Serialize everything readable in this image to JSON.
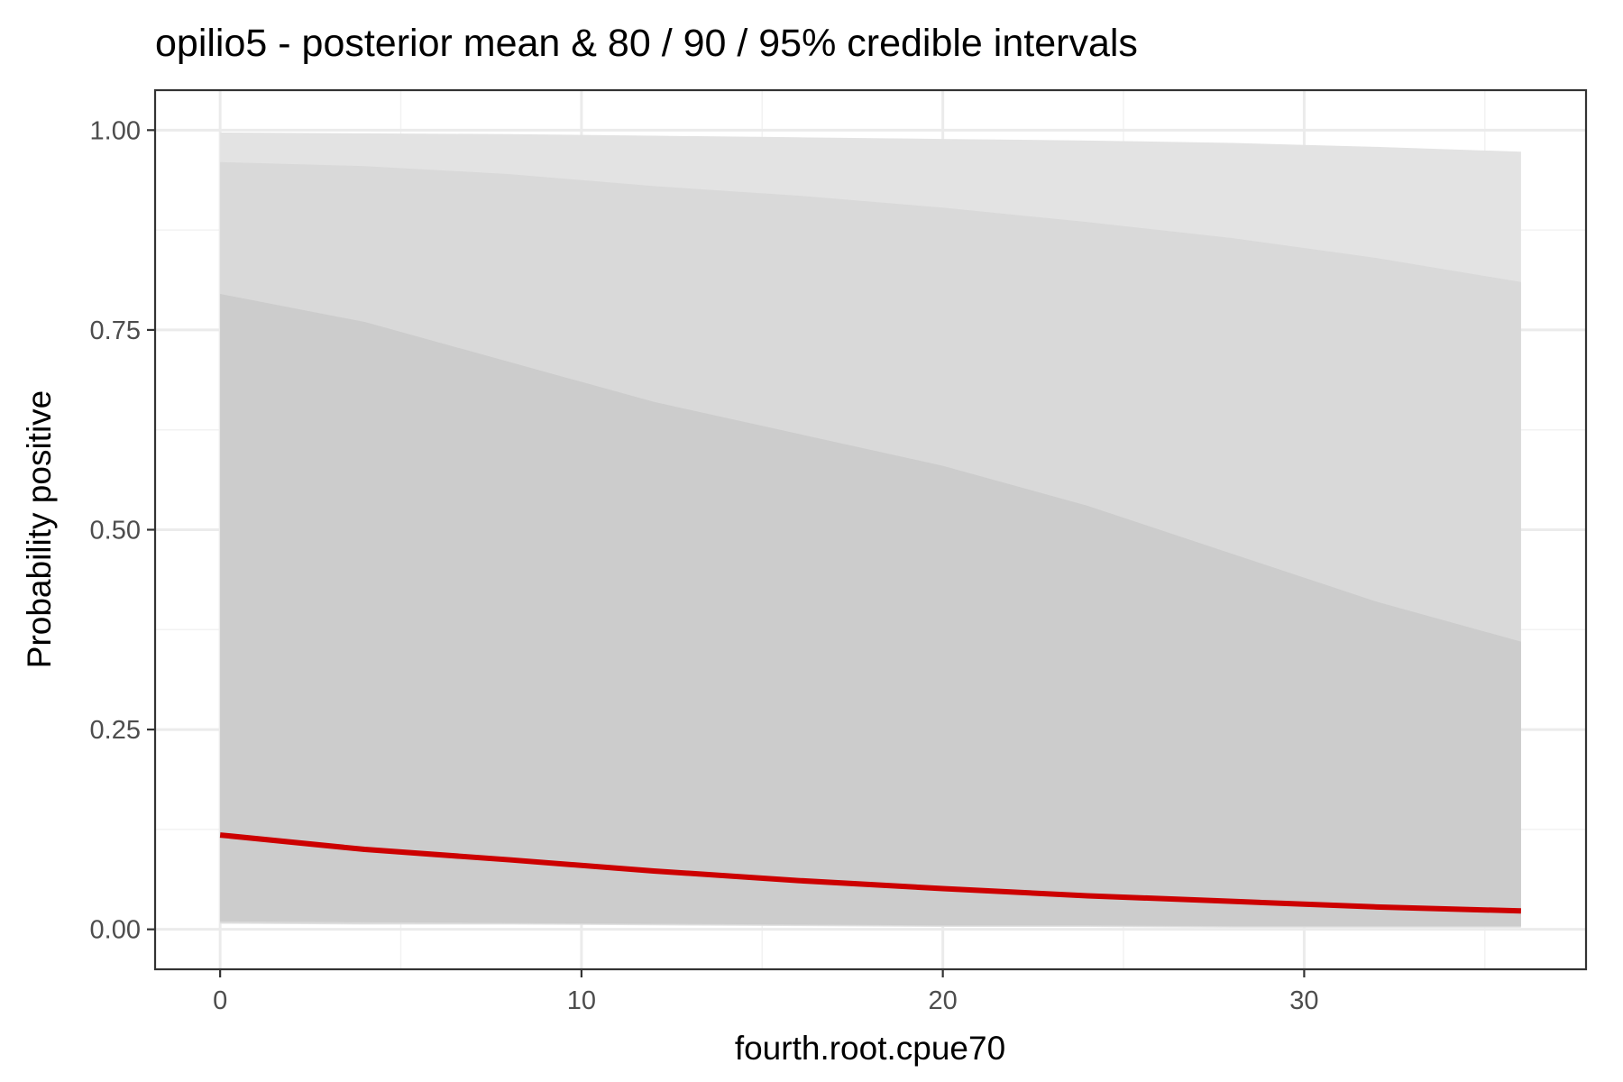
{
  "chart_data": {
    "type": "area",
    "title": "opilio5 - posterior mean & 80 / 90 / 95% credible intervals",
    "xlabel": "fourth.root.cpue70",
    "ylabel": "Probability positive",
    "xlim": [
      -1.8,
      37.8
    ],
    "ylim": [
      -0.05,
      1.05
    ],
    "x_ticks": [
      0,
      10,
      20,
      30
    ],
    "x_tick_labels": [
      "0",
      "10",
      "20",
      "30"
    ],
    "y_ticks": [
      0,
      0.25,
      0.5,
      0.75,
      1
    ],
    "y_tick_labels": [
      "0.00",
      "0.25",
      "0.50",
      "0.75",
      "1.00"
    ],
    "grid": true,
    "x": [
      0,
      4,
      8,
      12,
      16,
      20,
      24,
      28,
      32,
      36
    ],
    "bands": [
      {
        "level": "95%",
        "fill": "#e3e3e3",
        "lower": [
          0.007,
          0.006,
          0.006,
          0.005,
          0.004,
          0.003,
          0.003,
          0.002,
          0.002,
          0.002
        ],
        "upper": [
          0.997,
          0.996,
          0.995,
          0.993,
          0.991,
          0.989,
          0.987,
          0.984,
          0.979,
          0.973
        ]
      },
      {
        "level": "90%",
        "fill": "#d9d9d9",
        "lower": [
          0.008,
          0.007,
          0.007,
          0.006,
          0.005,
          0.004,
          0.004,
          0.003,
          0.003,
          0.003
        ],
        "upper": [
          0.96,
          0.955,
          0.945,
          0.93,
          0.918,
          0.903,
          0.885,
          0.865,
          0.84,
          0.81
        ]
      },
      {
        "level": "80%",
        "fill": "#cccccc",
        "lower": [
          0.01,
          0.009,
          0.008,
          0.007,
          0.006,
          0.005,
          0.005,
          0.004,
          0.004,
          0.004
        ],
        "upper": [
          0.795,
          0.76,
          0.71,
          0.66,
          0.62,
          0.58,
          0.53,
          0.47,
          0.41,
          0.36
        ]
      }
    ],
    "series": [
      {
        "name": "posterior mean",
        "color": "#cc0000",
        "values": [
          0.118,
          0.1,
          0.087,
          0.073,
          0.061,
          0.051,
          0.042,
          0.035,
          0.028,
          0.023
        ]
      }
    ]
  }
}
